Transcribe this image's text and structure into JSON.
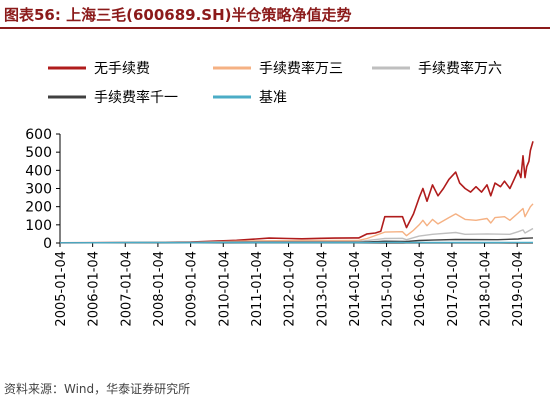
{
  "figure": {
    "title": "图表56:   上海三毛(600689.SH)半仓策略净值走势",
    "source": "资料来源：Wind，华泰证券研究所"
  },
  "colors": {
    "title": "#8b1a1a",
    "no_fee": "#b01c1c",
    "fee_3": "#f5b183",
    "fee_6": "#bfbfbf",
    "fee_1000": "#404040",
    "benchmark": "#4bacc6"
  },
  "chart_data": {
    "type": "line",
    "title": "",
    "xlabel": "",
    "ylabel": "",
    "ylim": [
      0,
      600
    ],
    "yticks": [
      0,
      100,
      200,
      300,
      400,
      500,
      600
    ],
    "xlim": [
      "2005-01-04",
      "2019-06-30"
    ],
    "xticks": [
      "2005-01-04",
      "2006-01-04",
      "2007-01-04",
      "2008-01-04",
      "2009-01-04",
      "2010-01-04",
      "2011-01-04",
      "2012-01-04",
      "2013-01-04",
      "2014-01-04",
      "2015-01-04",
      "2016-01-04",
      "2017-01-04",
      "2018-01-04",
      "2019-01-04"
    ],
    "legend_position": "top",
    "grid": false,
    "series": [
      {
        "name": "无手续费",
        "color": "#b01c1c",
        "points": [
          [
            "2005-01-04",
            1
          ],
          [
            "2007-06-01",
            3
          ],
          [
            "2009-01-04",
            5
          ],
          [
            "2010-06-01",
            15
          ],
          [
            "2011-01-04",
            22
          ],
          [
            "2011-06-01",
            27
          ],
          [
            "2012-01-04",
            25
          ],
          [
            "2012-06-01",
            23
          ],
          [
            "2013-01-04",
            26
          ],
          [
            "2013-06-01",
            27
          ],
          [
            "2014-01-04",
            28
          ],
          [
            "2014-03-01",
            28
          ],
          [
            "2014-06-01",
            50
          ],
          [
            "2014-09-01",
            55
          ],
          [
            "2014-11-01",
            65
          ],
          [
            "2014-12-15",
            145
          ],
          [
            "2015-07-01",
            145
          ],
          [
            "2015-08-15",
            85
          ],
          [
            "2015-11-01",
            160
          ],
          [
            "2016-01-04",
            250
          ],
          [
            "2016-02-15",
            300
          ],
          [
            "2016-04-01",
            230
          ],
          [
            "2016-06-01",
            320
          ],
          [
            "2016-08-01",
            260
          ],
          [
            "2016-10-01",
            300
          ],
          [
            "2016-12-01",
            350
          ],
          [
            "2017-02-15",
            390
          ],
          [
            "2017-04-01",
            330
          ],
          [
            "2017-06-01",
            300
          ],
          [
            "2017-08-01",
            280
          ],
          [
            "2017-10-01",
            310
          ],
          [
            "2017-12-01",
            280
          ],
          [
            "2018-02-01",
            320
          ],
          [
            "2018-03-15",
            260
          ],
          [
            "2018-05-01",
            330
          ],
          [
            "2018-07-01",
            310
          ],
          [
            "2018-08-15",
            340
          ],
          [
            "2018-10-15",
            300
          ],
          [
            "2018-12-01",
            350
          ],
          [
            "2019-01-15",
            400
          ],
          [
            "2019-02-15",
            360
          ],
          [
            "2019-03-10",
            480
          ],
          [
            "2019-04-01",
            360
          ],
          [
            "2019-04-20",
            420
          ],
          [
            "2019-05-15",
            450
          ],
          [
            "2019-06-01",
            510
          ],
          [
            "2019-06-30",
            560
          ]
        ]
      },
      {
        "name": "手续费率万三",
        "color": "#f5b183",
        "points": [
          [
            "2005-01-04",
            1
          ],
          [
            "2009-01-04",
            4
          ],
          [
            "2011-01-04",
            12
          ],
          [
            "2013-01-04",
            14
          ],
          [
            "2014-03-01",
            15
          ],
          [
            "2014-06-01",
            25
          ],
          [
            "2014-12-15",
            60
          ],
          [
            "2015-07-01",
            62
          ],
          [
            "2015-08-15",
            40
          ],
          [
            "2015-11-01",
            70
          ],
          [
            "2016-01-04",
            100
          ],
          [
            "2016-02-15",
            125
          ],
          [
            "2016-04-01",
            95
          ],
          [
            "2016-06-01",
            130
          ],
          [
            "2016-08-01",
            105
          ],
          [
            "2016-12-01",
            140
          ],
          [
            "2017-02-15",
            160
          ],
          [
            "2017-06-01",
            130
          ],
          [
            "2017-10-01",
            125
          ],
          [
            "2018-02-01",
            135
          ],
          [
            "2018-03-15",
            110
          ],
          [
            "2018-05-01",
            140
          ],
          [
            "2018-08-15",
            145
          ],
          [
            "2018-10-15",
            125
          ],
          [
            "2019-01-15",
            165
          ],
          [
            "2019-03-10",
            190
          ],
          [
            "2019-04-01",
            145
          ],
          [
            "2019-06-01",
            200
          ],
          [
            "2019-06-30",
            215
          ]
        ]
      },
      {
        "name": "手续费率万六",
        "color": "#bfbfbf",
        "points": [
          [
            "2005-01-04",
            1
          ],
          [
            "2011-01-04",
            7
          ],
          [
            "2014-03-01",
            8
          ],
          [
            "2014-12-15",
            25
          ],
          [
            "2015-07-01",
            26
          ],
          [
            "2015-08-15",
            18
          ],
          [
            "2016-01-04",
            38
          ],
          [
            "2016-06-01",
            48
          ],
          [
            "2017-02-15",
            58
          ],
          [
            "2017-06-01",
            48
          ],
          [
            "2018-02-01",
            50
          ],
          [
            "2018-10-15",
            48
          ],
          [
            "2019-01-15",
            62
          ],
          [
            "2019-03-10",
            72
          ],
          [
            "2019-04-01",
            55
          ],
          [
            "2019-06-30",
            80
          ]
        ]
      },
      {
        "name": "手续费率千一",
        "color": "#404040",
        "points": [
          [
            "2005-01-04",
            1
          ],
          [
            "2011-01-04",
            4
          ],
          [
            "2014-03-01",
            4
          ],
          [
            "2014-12-15",
            10
          ],
          [
            "2015-08-15",
            8
          ],
          [
            "2016-01-04",
            14
          ],
          [
            "2016-06-01",
            16
          ],
          [
            "2017-02-15",
            19
          ],
          [
            "2018-06-01",
            18
          ],
          [
            "2019-01-15",
            22
          ],
          [
            "2019-03-10",
            26
          ],
          [
            "2019-06-30",
            28
          ]
        ]
      },
      {
        "name": "基准",
        "color": "#4bacc6",
        "points": [
          [
            "2005-01-04",
            1
          ],
          [
            "2006-06-01",
            1.5
          ],
          [
            "2007-06-01",
            3
          ],
          [
            "2008-01-04",
            2
          ],
          [
            "2009-01-04",
            1
          ],
          [
            "2010-01-04",
            2
          ],
          [
            "2012-01-04",
            1.5
          ],
          [
            "2014-01-04",
            1.5
          ],
          [
            "2015-06-01",
            4
          ],
          [
            "2015-08-15",
            2
          ],
          [
            "2016-01-04",
            2.5
          ],
          [
            "2017-01-04",
            2.8
          ],
          [
            "2018-06-01",
            3
          ],
          [
            "2019-06-30",
            3.2
          ]
        ]
      }
    ]
  }
}
